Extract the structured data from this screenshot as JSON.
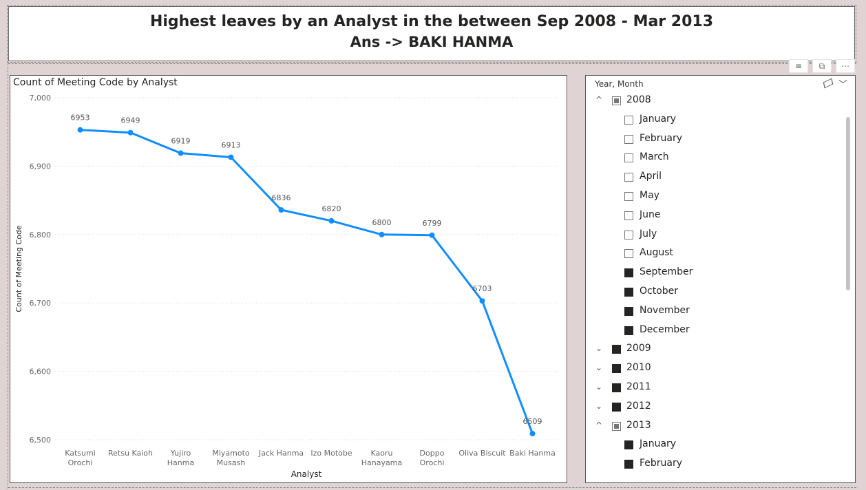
{
  "header": {
    "line1": "Highest leaves by an Analyst in the between Sep 2008 - Mar 2013",
    "line2": "Ans -> BAKI HANMA"
  },
  "chart_data": {
    "type": "line",
    "title": "Count of Meeting Code by Analyst",
    "xlabel": "Analyst",
    "ylabel": "Count of Meeting Code",
    "ylim": [
      6500,
      7000
    ],
    "yticks": [
      "6,500",
      "6,600",
      "6,700",
      "6,800",
      "6,900",
      "7,000"
    ],
    "grid": true,
    "color": "#118DFF",
    "categories": [
      [
        "Katsumi",
        "Orochi"
      ],
      [
        "Retsu Kaioh"
      ],
      [
        "Yujiro",
        "Hanma"
      ],
      [
        "Miyamoto",
        "Musash"
      ],
      [
        "Jack Hanma"
      ],
      [
        "Izo Motobe"
      ],
      [
        "Kaoru",
        "Hanayama"
      ],
      [
        "Doppo",
        "Orochi"
      ],
      [
        "Oliva Biscuit"
      ],
      [
        "Baki Hanma"
      ]
    ],
    "values": [
      6953,
      6949,
      6919,
      6913,
      6836,
      6820,
      6800,
      6799,
      6703,
      6509
    ]
  },
  "slicer": {
    "title": "Year, Month",
    "items": [
      {
        "label": "2008",
        "level": 0,
        "state": "partial",
        "expanded": true
      },
      {
        "label": "January",
        "level": 1,
        "state": "unchecked"
      },
      {
        "label": "February",
        "level": 1,
        "state": "unchecked"
      },
      {
        "label": "March",
        "level": 1,
        "state": "unchecked"
      },
      {
        "label": "April",
        "level": 1,
        "state": "unchecked"
      },
      {
        "label": "May",
        "level": 1,
        "state": "unchecked"
      },
      {
        "label": "June",
        "level": 1,
        "state": "unchecked"
      },
      {
        "label": "July",
        "level": 1,
        "state": "unchecked"
      },
      {
        "label": "August",
        "level": 1,
        "state": "unchecked"
      },
      {
        "label": "September",
        "level": 1,
        "state": "checked"
      },
      {
        "label": "October",
        "level": 1,
        "state": "checked"
      },
      {
        "label": "November",
        "level": 1,
        "state": "checked"
      },
      {
        "label": "December",
        "level": 1,
        "state": "checked"
      },
      {
        "label": "2009",
        "level": 0,
        "state": "checked",
        "expanded": false
      },
      {
        "label": "2010",
        "level": 0,
        "state": "checked",
        "expanded": false
      },
      {
        "label": "2011",
        "level": 0,
        "state": "checked",
        "expanded": false
      },
      {
        "label": "2012",
        "level": 0,
        "state": "checked",
        "expanded": false
      },
      {
        "label": "2013",
        "level": 0,
        "state": "partial",
        "expanded": true
      },
      {
        "label": "January",
        "level": 1,
        "state": "checked"
      },
      {
        "label": "February",
        "level": 1,
        "state": "checked"
      }
    ]
  }
}
